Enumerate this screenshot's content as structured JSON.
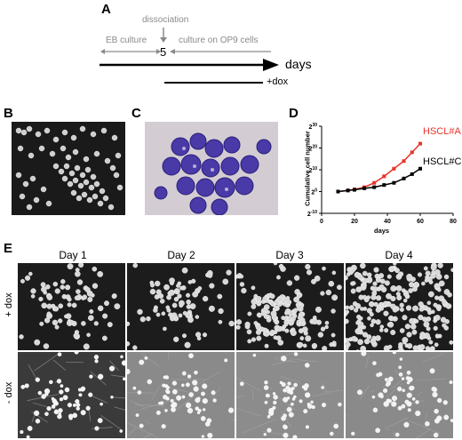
{
  "panels": {
    "a": "A",
    "b": "B",
    "c": "C",
    "d": "D",
    "e": "E"
  },
  "timeline": {
    "dissociation": "dissociation",
    "eb_culture": "EB culture",
    "day_number": "5",
    "op9_culture": "culture on OP9 cells",
    "days": "days",
    "dox": "+dox"
  },
  "chart_data": {
    "type": "line",
    "ylabel": "Cumulative cell number",
    "xlabel": "days",
    "x_ticks": [
      "0",
      "20",
      "40",
      "60",
      "80"
    ],
    "y_ticks": [
      "2^30",
      "2^20",
      "2^10",
      "2^0",
      "2^-10"
    ],
    "y_tick_base": [
      "2",
      "2",
      "2",
      "2",
      "2"
    ],
    "y_tick_exp": [
      "30",
      "20",
      "10",
      "0",
      "-10"
    ],
    "xlim": [
      0,
      80
    ],
    "ylim_log2": [
      -10,
      30
    ],
    "series": [
      {
        "name": "HSCL#A",
        "color": "#e8332a",
        "x": [
          10,
          16,
          20,
          26,
          32,
          38,
          44,
          50,
          55,
          60
        ],
        "y_log2": [
          0,
          0.5,
          1,
          2,
          4,
          7,
          10.5,
          14,
          18,
          22
        ]
      },
      {
        "name": "HSCL#C",
        "color": "#000000",
        "x": [
          10,
          16,
          20,
          26,
          32,
          38,
          44,
          50,
          55,
          60
        ],
        "y_log2": [
          0,
          0.5,
          0.8,
          1.5,
          2,
          3,
          4,
          6,
          8,
          10.5
        ]
      }
    ]
  },
  "panel_e": {
    "days": [
      "Day 1",
      "Day 2",
      "Day 3",
      "Day 4"
    ],
    "rows": [
      "+ dox",
      "- dox"
    ]
  },
  "colors": {
    "red": "#e8332a",
    "micro_dark": "#1f1f1f",
    "micro_gray": "#8a8a8a",
    "stain_bg": "#cfc8cf",
    "stain_cell": "#4a3aa8"
  }
}
